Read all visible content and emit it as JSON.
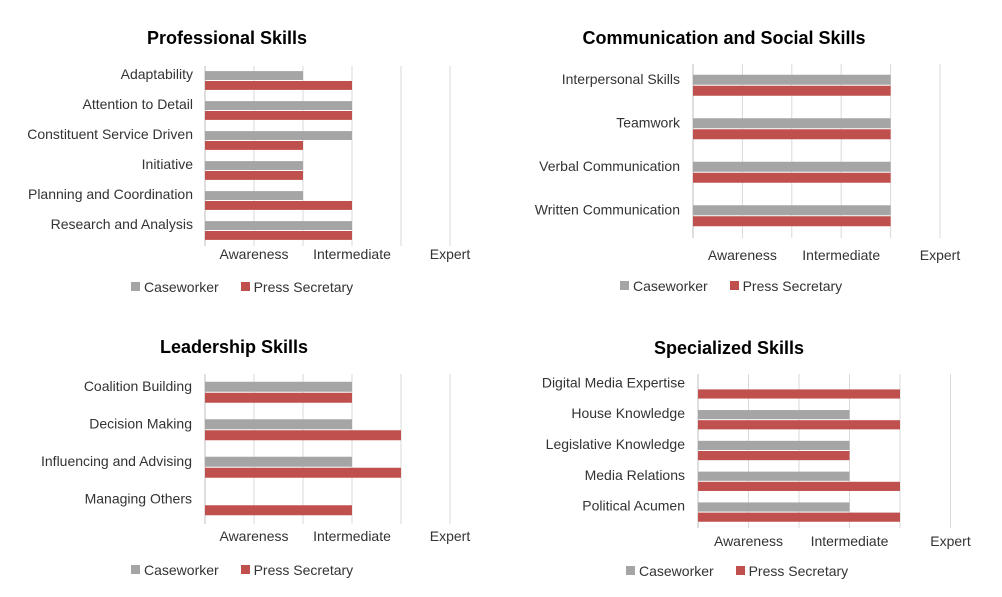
{
  "colors": {
    "caseworker": "#a5a5a5",
    "press_secretary": "#c0504d",
    "grid": "#d9d9d9"
  },
  "chart_data": [
    {
      "type": "bar",
      "orientation": "horizontal",
      "title": "Professional Skills",
      "categories": [
        "Adaptability",
        "Attention to Detail",
        "Constituent Service Driven",
        "Initiative",
        "Planning and Coordination",
        "Research and Analysis"
      ],
      "series": [
        {
          "name": "Caseworker",
          "values": [
            2,
            3,
            3,
            2,
            2,
            3
          ]
        },
        {
          "name": "Press Secretary",
          "values": [
            3,
            3,
            2,
            2,
            3,
            3
          ]
        }
      ],
      "x_ticks": [
        "Awareness",
        "Intermediate",
        "Expert"
      ],
      "xlim": [
        0,
        5
      ],
      "grid": true,
      "legend_position": "bottom"
    },
    {
      "type": "bar",
      "orientation": "horizontal",
      "title": "Communication and Social Skills",
      "categories": [
        "Interpersonal Skills",
        "Teamwork",
        "Verbal Communication",
        "Written Communication"
      ],
      "series": [
        {
          "name": "Caseworker",
          "values": [
            4,
            4,
            4,
            4
          ]
        },
        {
          "name": "Press Secretary",
          "values": [
            4,
            4,
            4,
            4
          ]
        }
      ],
      "x_ticks": [
        "Awareness",
        "Intermediate",
        "Expert"
      ],
      "xlim": [
        0,
        5
      ],
      "grid": true,
      "legend_position": "bottom"
    },
    {
      "type": "bar",
      "orientation": "horizontal",
      "title": "Leadership Skills",
      "categories": [
        "Coalition Building",
        "Decision Making",
        "Influencing and Advising",
        "Managing Others"
      ],
      "series": [
        {
          "name": "Caseworker",
          "values": [
            3,
            3,
            3,
            0
          ]
        },
        {
          "name": "Press Secretary",
          "values": [
            3,
            4,
            4,
            3
          ]
        }
      ],
      "x_ticks": [
        "Awareness",
        "Intermediate",
        "Expert"
      ],
      "xlim": [
        0,
        5
      ],
      "grid": true,
      "legend_position": "bottom"
    },
    {
      "type": "bar",
      "orientation": "horizontal",
      "title": "Specialized Skills",
      "categories": [
        "Digital Media Expertise",
        "House Knowledge",
        "Legislative Knowledge",
        "Media Relations",
        "Political Acumen"
      ],
      "series": [
        {
          "name": "Caseworker",
          "values": [
            0,
            3,
            3,
            3,
            3
          ]
        },
        {
          "name": "Press Secretary",
          "values": [
            4,
            4,
            3,
            4,
            4
          ]
        }
      ],
      "x_ticks": [
        "Awareness",
        "Intermediate",
        "Expert"
      ],
      "xlim": [
        0,
        5
      ],
      "grid": true,
      "legend_position": "bottom"
    }
  ]
}
